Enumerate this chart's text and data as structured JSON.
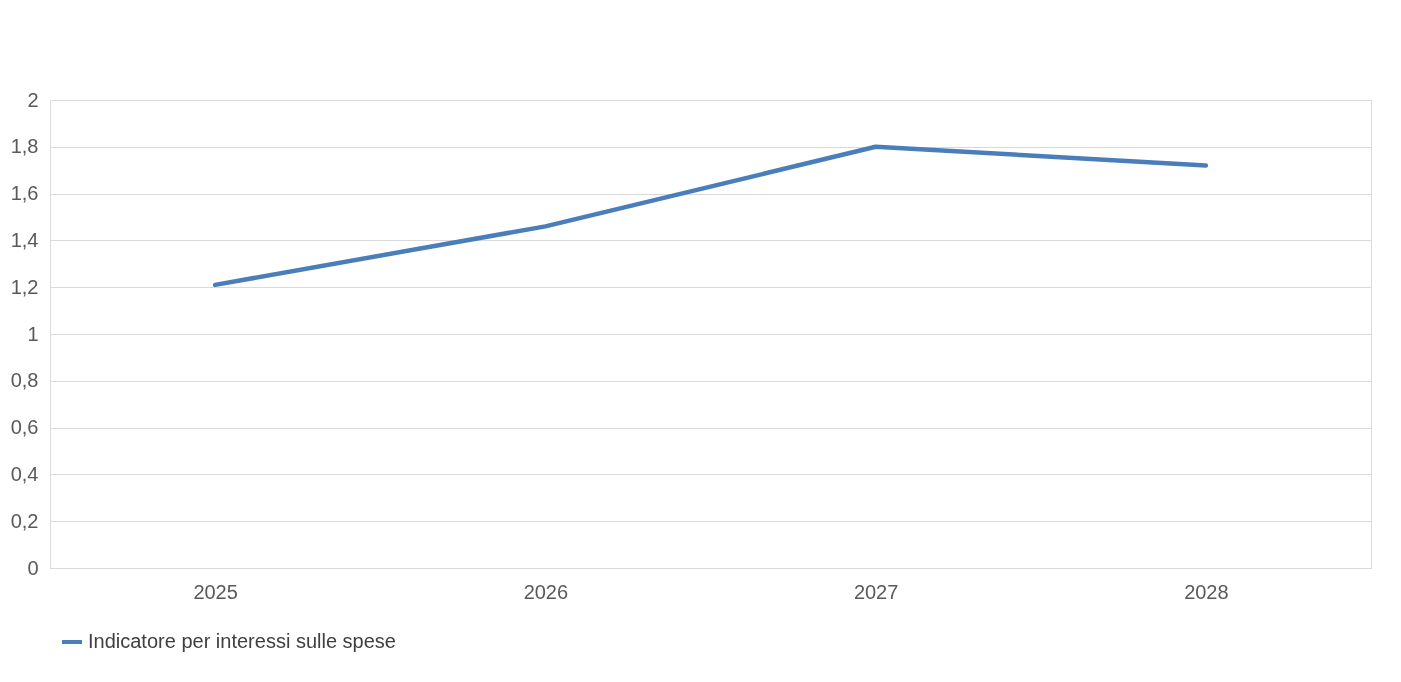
{
  "chart_data": {
    "type": "line",
    "categories": [
      "2025",
      "2026",
      "2027",
      "2028"
    ],
    "series": [
      {
        "name": "Indicatore per interessi sulle spese",
        "color": "#4a7ebb",
        "values": [
          1.21,
          1.46,
          1.8,
          1.72
        ]
      }
    ],
    "ylim": [
      0,
      2
    ],
    "yticks": [
      0,
      {
        "value": 0.2,
        "label": "0,2"
      },
      {
        "value": 0.4,
        "label": "0,4"
      },
      {
        "value": 0.6,
        "label": "0,6"
      },
      {
        "value": 0.8,
        "label": "0,8"
      },
      1,
      {
        "value": 1.2,
        "label": "1,2"
      },
      {
        "value": 1.4,
        "label": "1,4"
      },
      {
        "value": 1.6,
        "label": "1,6"
      },
      {
        "value": 1.8,
        "label": "1,8"
      },
      2
    ],
    "grid": "y",
    "legend": "bottom",
    "marker": "none",
    "line_style": "solid"
  }
}
